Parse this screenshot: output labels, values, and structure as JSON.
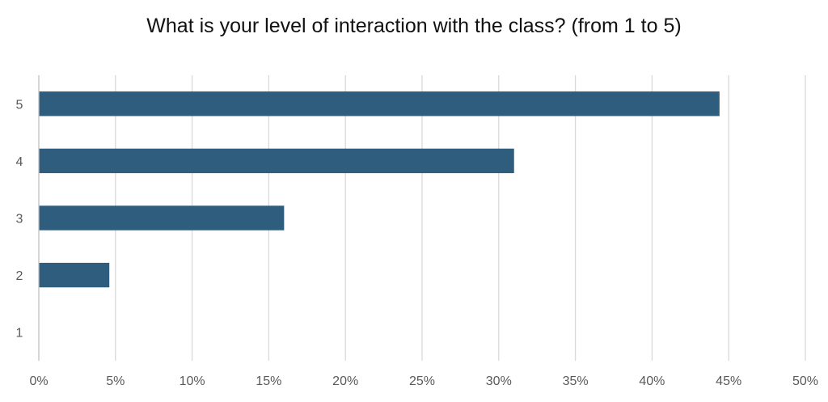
{
  "chart_data": {
    "type": "bar",
    "orientation": "horizontal",
    "title": "What is your level of interaction with the class? (from 1 to 5)",
    "categories": [
      "5",
      "4",
      "3",
      "2",
      "1"
    ],
    "values": [
      44.4,
      31.0,
      16.0,
      4.6,
      0
    ],
    "xlabel": "",
    "ylabel": "",
    "xlim": [
      0,
      50
    ],
    "xticks": [
      "0%",
      "5%",
      "10%",
      "15%",
      "20%",
      "25%",
      "30%",
      "35%",
      "40%",
      "45%",
      "50%"
    ],
    "xtick_values": [
      0,
      5,
      10,
      15,
      20,
      25,
      30,
      35,
      40,
      45,
      50
    ],
    "grid": "vertical",
    "bar_color": "#2E5D7E",
    "grid_color": "#D9D9D9",
    "axis_color": "#BFBFBF",
    "tick_label_color": "#595959"
  }
}
